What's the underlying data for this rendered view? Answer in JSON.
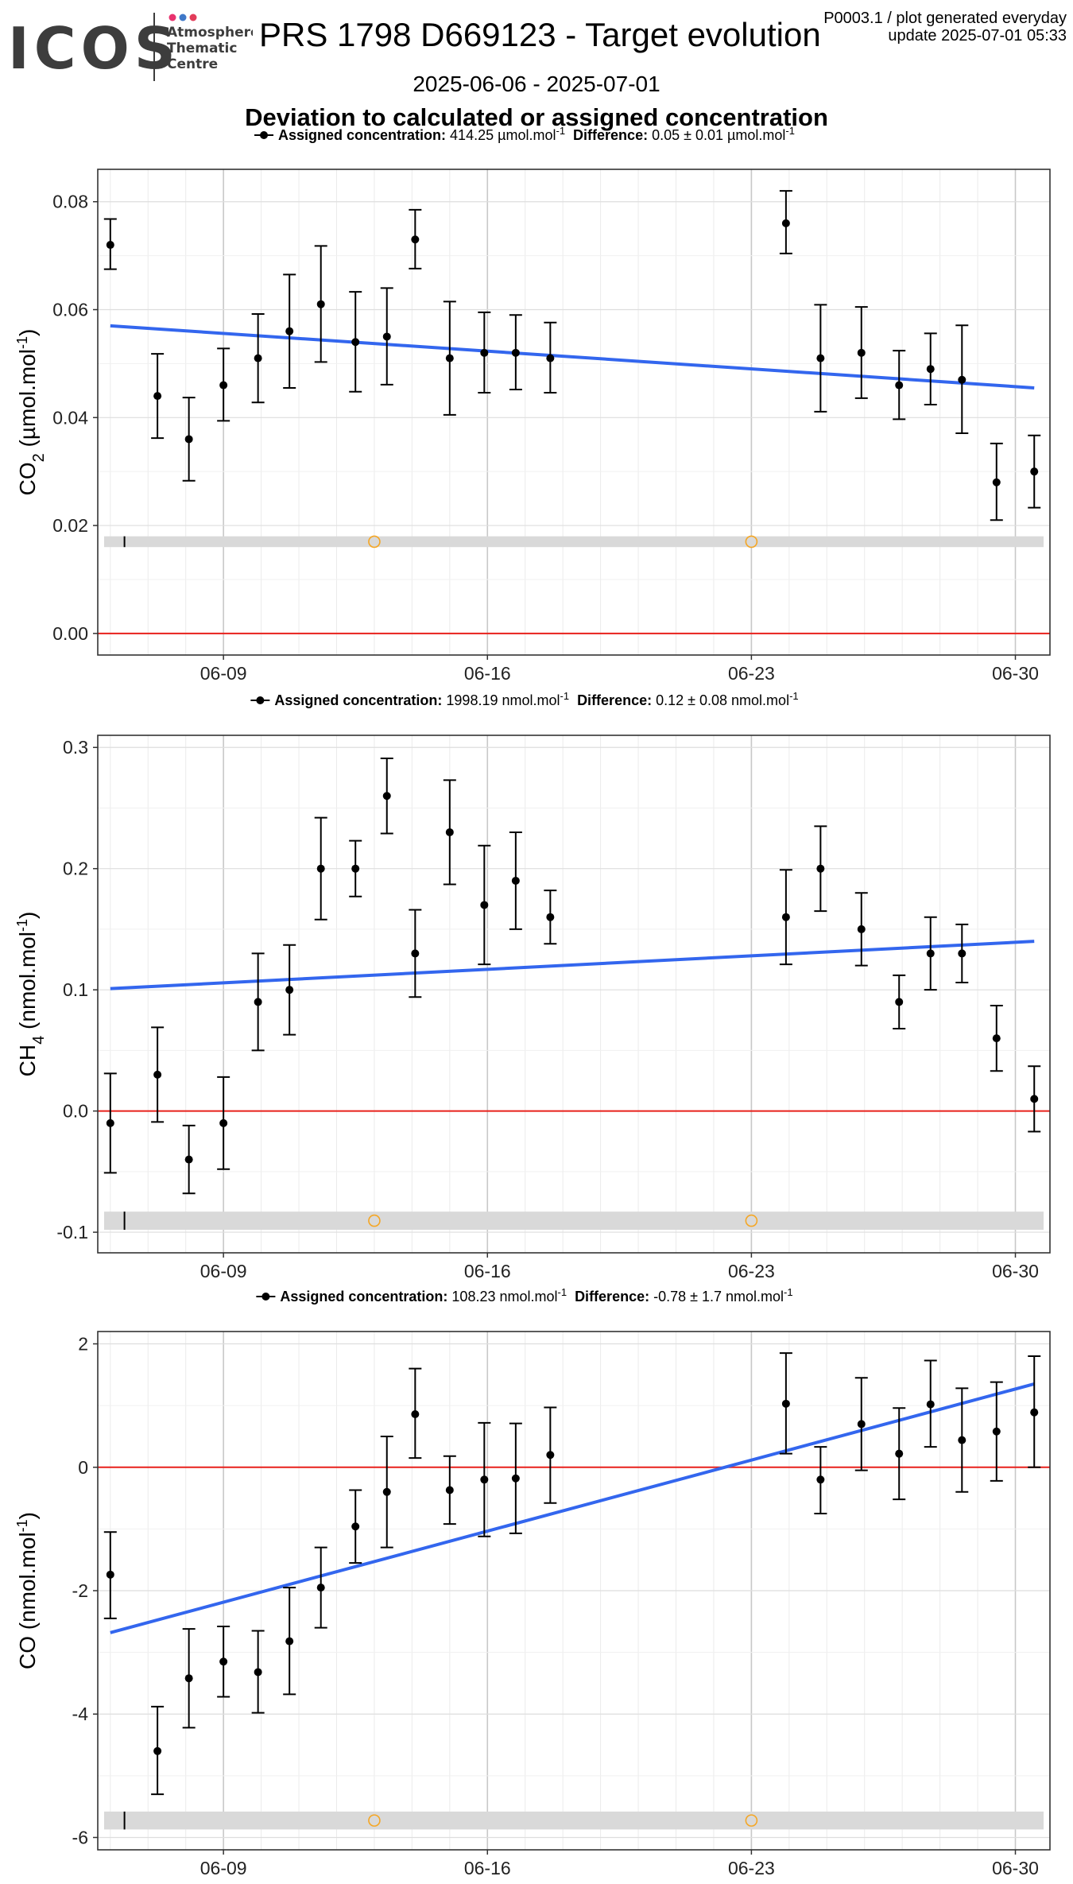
{
  "header": {
    "logo_text": "ICOS",
    "logo_sub": [
      "Atmosphere",
      "Thematic",
      "Centre"
    ],
    "title": "PRS 1798 D669123 - Target evolution",
    "info_line1": "P0003.1 / plot generated everyday",
    "info_line2": "update  2025-07-01 05:33",
    "date_range": "2025-06-06 - 2025-07-01",
    "subtitle": "Deviation to calculated or assigned concentration"
  },
  "colors": {
    "points": "#000000",
    "trend_line": "#3366EE",
    "zero_line": "#E8201B",
    "band": "#D9D9D9",
    "marker_circle": "#F5A623",
    "logo_dots": [
      "#E8336E",
      "#3F78C8",
      "#E23C5A"
    ]
  },
  "chart_data": [
    {
      "type": "scatter",
      "gas": "CO2",
      "legend": {
        "assigned_label": "Assigned concentration:",
        "assigned_value": "414.25 µmol.mol",
        "difference_label": "Difference:",
        "difference_value": "0.05 ± 0.01 µmol.mol"
      },
      "ylabel_main": "CO",
      "ylabel_sub": "2",
      "ylabel_unit": " (µmol.mol",
      "ylim": [
        -0.004,
        0.086
      ],
      "xlim": [
        "2025-06-05T16:00",
        "2025-06-30T22:00"
      ],
      "x_ticks": [
        "06-09",
        "06-16",
        "06-23",
        "06-30"
      ],
      "y_ticks": [
        "0.00",
        "0.02",
        "0.04",
        "0.06",
        "0.08"
      ],
      "y_tick_values": [
        0,
        0.02,
        0.04,
        0.06,
        0.08
      ],
      "grid": true,
      "reference_line": 0,
      "band": [
        0.016,
        0.018
      ],
      "band_markers": [
        "2025-06-13",
        "2025-06-23"
      ],
      "band_tick": "2025-06-06T09:00",
      "trend": [
        [
          "2025-06-06",
          0.057
        ],
        [
          "2025-06-30T12:00",
          0.0455
        ]
      ],
      "series": [
        {
          "x": "2025-06-06",
          "y": 0.072,
          "lo": 0.0675,
          "hi": 0.0768
        },
        {
          "x": "2025-06-07T06:00",
          "y": 0.044,
          "lo": 0.0362,
          "hi": 0.0518
        },
        {
          "x": "2025-06-08T02:00",
          "y": 0.036,
          "lo": 0.0283,
          "hi": 0.0437
        },
        {
          "x": "2025-06-09",
          "y": 0.046,
          "lo": 0.0394,
          "hi": 0.0528
        },
        {
          "x": "2025-06-09T22:00",
          "y": 0.051,
          "lo": 0.0428,
          "hi": 0.0592
        },
        {
          "x": "2025-06-10T18:00",
          "y": 0.056,
          "lo": 0.0455,
          "hi": 0.0665
        },
        {
          "x": "2025-06-11T14:00",
          "y": 0.061,
          "lo": 0.0503,
          "hi": 0.0718
        },
        {
          "x": "2025-06-12T12:00",
          "y": 0.054,
          "lo": 0.0448,
          "hi": 0.0633
        },
        {
          "x": "2025-06-13T08:00",
          "y": 0.055,
          "lo": 0.0461,
          "hi": 0.064
        },
        {
          "x": "2025-06-14T02:00",
          "y": 0.073,
          "lo": 0.0676,
          "hi": 0.0785
        },
        {
          "x": "2025-06-15",
          "y": 0.051,
          "lo": 0.0405,
          "hi": 0.0615
        },
        {
          "x": "2025-06-15T22:00",
          "y": 0.052,
          "lo": 0.0446,
          "hi": 0.0595
        },
        {
          "x": "2025-06-16T18:00",
          "y": 0.052,
          "lo": 0.0452,
          "hi": 0.059
        },
        {
          "x": "2025-06-17T16:00",
          "y": 0.051,
          "lo": 0.0446,
          "hi": 0.0576
        },
        {
          "x": "2025-06-23T22:00",
          "y": 0.076,
          "lo": 0.0704,
          "hi": 0.082
        },
        {
          "x": "2025-06-24T20:00",
          "y": 0.051,
          "lo": 0.0411,
          "hi": 0.0609
        },
        {
          "x": "2025-06-25T22:00",
          "y": 0.052,
          "lo": 0.0436,
          "hi": 0.0605
        },
        {
          "x": "2025-06-26T22:00",
          "y": 0.046,
          "lo": 0.0397,
          "hi": 0.0524
        },
        {
          "x": "2025-06-27T18:00",
          "y": 0.049,
          "lo": 0.0424,
          "hi": 0.0556
        },
        {
          "x": "2025-06-28T14:00",
          "y": 0.047,
          "lo": 0.0371,
          "hi": 0.0571
        },
        {
          "x": "2025-06-29T12:00",
          "y": 0.028,
          "lo": 0.021,
          "hi": 0.0352
        },
        {
          "x": "2025-06-30T12:00",
          "y": 0.03,
          "lo": 0.0233,
          "hi": 0.0367
        }
      ]
    },
    {
      "type": "scatter",
      "gas": "CH4",
      "legend": {
        "assigned_label": "Assigned concentration:",
        "assigned_value": "1998.19 nmol.mol",
        "difference_label": "Difference:",
        "difference_value": "0.12 ± 0.08 nmol.mol"
      },
      "ylabel_main": "CH",
      "ylabel_sub": "4",
      "ylabel_unit": " (nmol.mol",
      "ylim": [
        -0.117,
        0.31
      ],
      "xlim": [
        "2025-06-05T16:00",
        "2025-06-30T22:00"
      ],
      "x_ticks": [
        "06-09",
        "06-16",
        "06-23",
        "06-30"
      ],
      "y_ticks": [
        "-0.1",
        "0.0",
        "0.1",
        "0.2",
        "0.3"
      ],
      "y_tick_values": [
        -0.1,
        0,
        0.1,
        0.2,
        0.3
      ],
      "grid": true,
      "reference_line": 0,
      "band": [
        -0.098,
        -0.083
      ],
      "band_markers": [
        "2025-06-13",
        "2025-06-23"
      ],
      "band_tick": "2025-06-06T09:00",
      "trend": [
        [
          "2025-06-06",
          0.101
        ],
        [
          "2025-06-30T12:00",
          0.14
        ]
      ],
      "series": [
        {
          "x": "2025-06-06",
          "y": -0.01,
          "lo": -0.051,
          "hi": 0.031
        },
        {
          "x": "2025-06-07T06:00",
          "y": 0.03,
          "lo": -0.009,
          "hi": 0.069
        },
        {
          "x": "2025-06-08T02:00",
          "y": -0.04,
          "lo": -0.068,
          "hi": -0.012
        },
        {
          "x": "2025-06-09",
          "y": -0.01,
          "lo": -0.048,
          "hi": 0.028
        },
        {
          "x": "2025-06-09T22:00",
          "y": 0.09,
          "lo": 0.05,
          "hi": 0.13
        },
        {
          "x": "2025-06-10T18:00",
          "y": 0.1,
          "lo": 0.063,
          "hi": 0.137
        },
        {
          "x": "2025-06-11T14:00",
          "y": 0.2,
          "lo": 0.158,
          "hi": 0.242
        },
        {
          "x": "2025-06-12T12:00",
          "y": 0.2,
          "lo": 0.177,
          "hi": 0.223
        },
        {
          "x": "2025-06-13T08:00",
          "y": 0.26,
          "lo": 0.229,
          "hi": 0.291
        },
        {
          "x": "2025-06-14T02:00",
          "y": 0.13,
          "lo": 0.094,
          "hi": 0.166
        },
        {
          "x": "2025-06-15",
          "y": 0.23,
          "lo": 0.187,
          "hi": 0.273
        },
        {
          "x": "2025-06-15T22:00",
          "y": 0.17,
          "lo": 0.121,
          "hi": 0.219
        },
        {
          "x": "2025-06-16T18:00",
          "y": 0.19,
          "lo": 0.15,
          "hi": 0.23
        },
        {
          "x": "2025-06-17T16:00",
          "y": 0.16,
          "lo": 0.138,
          "hi": 0.182
        },
        {
          "x": "2025-06-23T22:00",
          "y": 0.16,
          "lo": 0.121,
          "hi": 0.199
        },
        {
          "x": "2025-06-24T20:00",
          "y": 0.2,
          "lo": 0.165,
          "hi": 0.235
        },
        {
          "x": "2025-06-25T22:00",
          "y": 0.15,
          "lo": 0.12,
          "hi": 0.18
        },
        {
          "x": "2025-06-26T22:00",
          "y": 0.09,
          "lo": 0.068,
          "hi": 0.112
        },
        {
          "x": "2025-06-27T18:00",
          "y": 0.13,
          "lo": 0.1,
          "hi": 0.16
        },
        {
          "x": "2025-06-28T14:00",
          "y": 0.13,
          "lo": 0.106,
          "hi": 0.154
        },
        {
          "x": "2025-06-29T12:00",
          "y": 0.06,
          "lo": 0.033,
          "hi": 0.087
        },
        {
          "x": "2025-06-30T12:00",
          "y": 0.01,
          "lo": -0.017,
          "hi": 0.037
        }
      ]
    },
    {
      "type": "scatter",
      "gas": "CO",
      "legend": {
        "assigned_label": "Assigned concentration:",
        "assigned_value": "108.23 nmol.mol",
        "difference_label": "Difference:",
        "difference_value": "-0.78 ± 1.7 nmol.mol"
      },
      "ylabel_main": "CO",
      "ylabel_sub": "",
      "ylabel_unit": " (nmol.mol",
      "ylim": [
        -6.2,
        2.2
      ],
      "xlim": [
        "2025-06-05T16:00",
        "2025-06-30T22:00"
      ],
      "x_ticks": [
        "06-09",
        "06-16",
        "06-23",
        "06-30"
      ],
      "y_ticks": [
        "-6",
        "-4",
        "-2",
        "0",
        "2"
      ],
      "y_tick_values": [
        -6,
        -4,
        -2,
        0,
        2
      ],
      "grid": true,
      "reference_line": 0,
      "band": [
        -5.87,
        -5.58
      ],
      "band_markers": [
        "2025-06-13",
        "2025-06-23"
      ],
      "band_tick": "2025-06-06T09:00",
      "trend": [
        [
          "2025-06-06",
          -2.68
        ],
        [
          "2025-06-30T12:00",
          1.35
        ]
      ],
      "series": [
        {
          "x": "2025-06-06",
          "y": -1.74,
          "lo": -2.45,
          "hi": -1.05
        },
        {
          "x": "2025-06-07T06:00",
          "y": -4.6,
          "lo": -5.3,
          "hi": -3.88
        },
        {
          "x": "2025-06-08T02:00",
          "y": -3.42,
          "lo": -4.22,
          "hi": -2.62
        },
        {
          "x": "2025-06-09",
          "y": -3.15,
          "lo": -3.72,
          "hi": -2.58
        },
        {
          "x": "2025-06-09T22:00",
          "y": -3.32,
          "lo": -3.98,
          "hi": -2.65
        },
        {
          "x": "2025-06-10T18:00",
          "y": -2.82,
          "lo": -3.68,
          "hi": -1.95
        },
        {
          "x": "2025-06-11T14:00",
          "y": -1.95,
          "lo": -2.6,
          "hi": -1.3
        },
        {
          "x": "2025-06-12T12:00",
          "y": -0.96,
          "lo": -1.55,
          "hi": -0.37
        },
        {
          "x": "2025-06-13T08:00",
          "y": -0.4,
          "lo": -1.3,
          "hi": 0.5
        },
        {
          "x": "2025-06-14T02:00",
          "y": 0.86,
          "lo": 0.15,
          "hi": 1.6
        },
        {
          "x": "2025-06-15",
          "y": -0.37,
          "lo": -0.92,
          "hi": 0.18
        },
        {
          "x": "2025-06-15T22:00",
          "y": -0.2,
          "lo": -1.12,
          "hi": 0.72
        },
        {
          "x": "2025-06-16T18:00",
          "y": -0.18,
          "lo": -1.07,
          "hi": 0.71
        },
        {
          "x": "2025-06-17T16:00",
          "y": 0.2,
          "lo": -0.58,
          "hi": 0.97
        },
        {
          "x": "2025-06-23T22:00",
          "y": 1.03,
          "lo": 0.22,
          "hi": 1.85
        },
        {
          "x": "2025-06-24T20:00",
          "y": -0.2,
          "lo": -0.75,
          "hi": 0.33
        },
        {
          "x": "2025-06-25T22:00",
          "y": 0.7,
          "lo": -0.05,
          "hi": 1.45
        },
        {
          "x": "2025-06-26T22:00",
          "y": 0.22,
          "lo": -0.52,
          "hi": 0.96
        },
        {
          "x": "2025-06-27T18:00",
          "y": 1.02,
          "lo": 0.33,
          "hi": 1.73
        },
        {
          "x": "2025-06-28T14:00",
          "y": 0.44,
          "lo": -0.4,
          "hi": 1.28
        },
        {
          "x": "2025-06-29T12:00",
          "y": 0.58,
          "lo": -0.22,
          "hi": 1.38
        },
        {
          "x": "2025-06-30T12:00",
          "y": 0.89,
          "lo": 0.0,
          "hi": 1.8
        }
      ]
    }
  ]
}
